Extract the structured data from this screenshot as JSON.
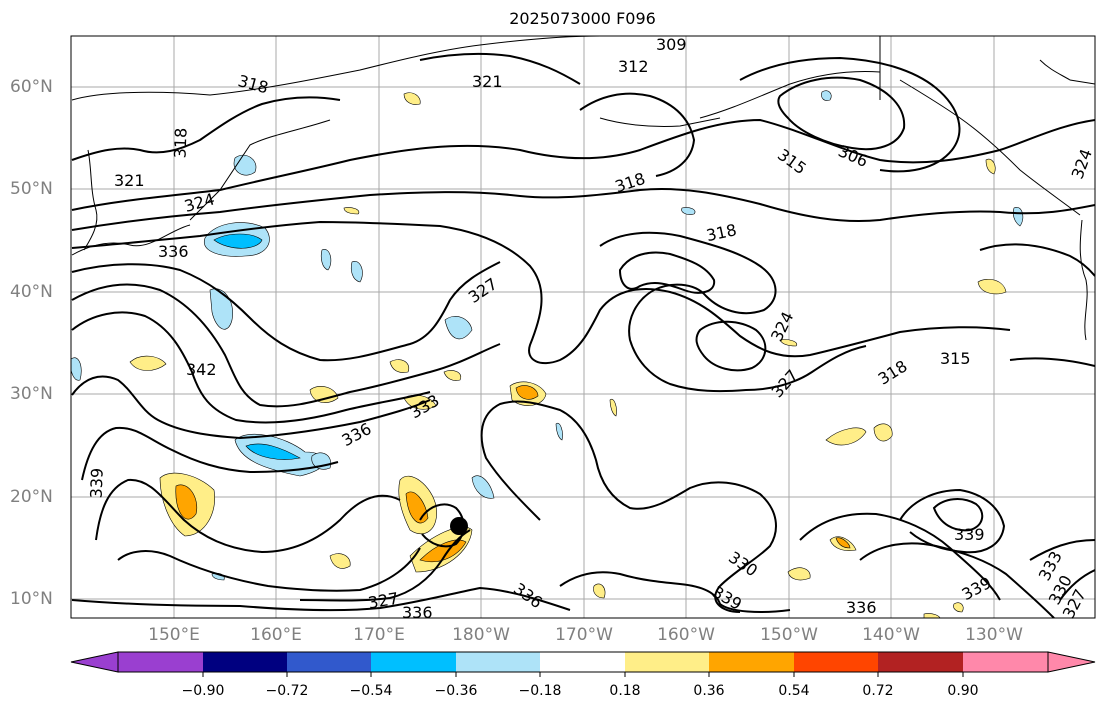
{
  "title": "2025073000 F096",
  "latitude_labels": [
    "60°N",
    "50°N",
    "40°N",
    "30°N",
    "20°N",
    "10°N"
  ],
  "longitude_labels": [
    "150°E",
    "160°E",
    "170°E",
    "180°W",
    "170°W",
    "160°W",
    "150°W",
    "140°W",
    "130°W"
  ],
  "contour_labels": [
    "309",
    "312",
    "318",
    "321",
    "318",
    "321",
    "324",
    "336",
    "342",
    "339",
    "336",
    "333",
    "327",
    "327",
    "336",
    "318",
    "318",
    "306",
    "315",
    "324",
    "324",
    "327",
    "318",
    "315",
    "330",
    "339",
    "336",
    "339",
    "333",
    "330",
    "327",
    "339"
  ],
  "colorbar": {
    "tick_labels": [
      "−0.90",
      "−0.72",
      "−0.54",
      "−0.36",
      "−0.18",
      "0.18",
      "0.36",
      "0.54",
      "0.72",
      "0.90"
    ],
    "colors": [
      "#9a3fd0",
      "#000080",
      "#3159cc",
      "#00bfff",
      "#aee3f8",
      "#ffffff",
      "#ffee88",
      "#ffa500",
      "#ff4500",
      "#b22222",
      "#ff88aa"
    ]
  },
  "marker": "storm-center-dot"
}
